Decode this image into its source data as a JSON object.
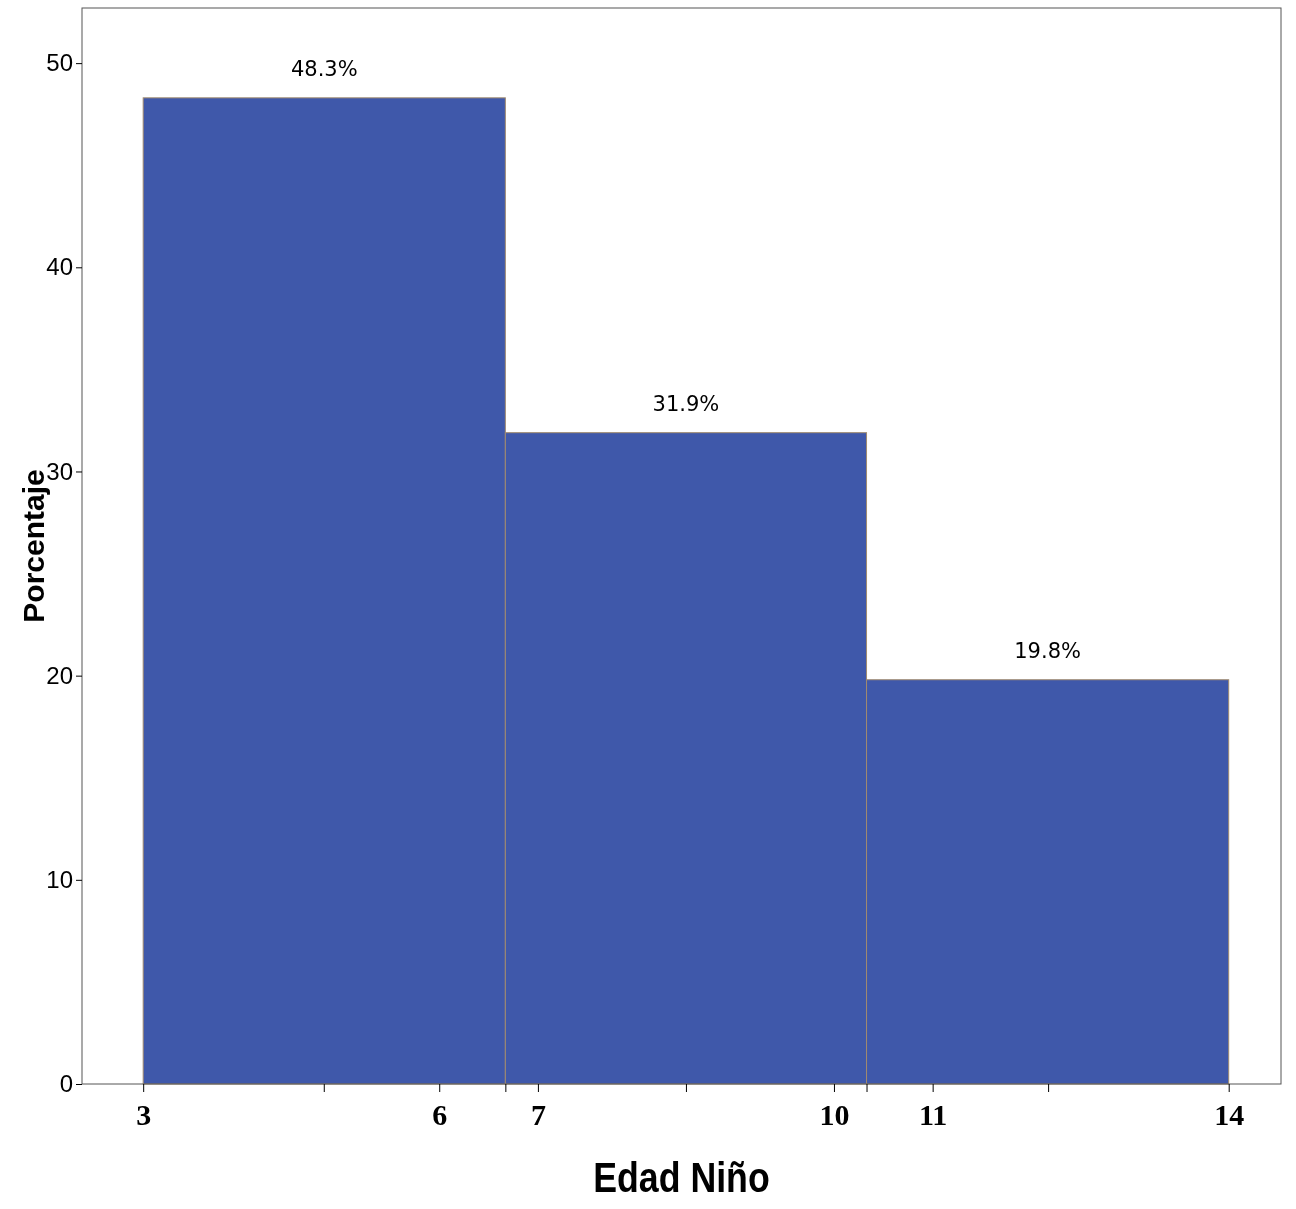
{
  "chart_data": {
    "type": "histogram",
    "xlabel": "Edad Niño",
    "ylabel": "Porcentaje",
    "bins": [
      3,
      6.67,
      10.33,
      14
    ],
    "values": [
      48.3,
      31.9,
      19.8
    ],
    "value_labels": [
      "48.3%",
      "31.9%",
      "19.8%"
    ],
    "color": "#3f58aa",
    "xlim": [
      2.38,
      14.53
    ],
    "xticks": [
      3,
      {
        "value": 4.83,
        "label": null
      },
      6,
      {
        "value": 6.67,
        "label": null
      },
      7,
      {
        "value": 8.5,
        "label": null
      },
      10,
      {
        "value": 10.33,
        "label": null
      },
      11,
      {
        "value": 12.17,
        "label": null
      },
      14
    ],
    "ylim": [
      0,
      52.7
    ],
    "yticks": [
      0,
      10,
      20,
      30,
      40,
      50
    ],
    "grid": false
  }
}
